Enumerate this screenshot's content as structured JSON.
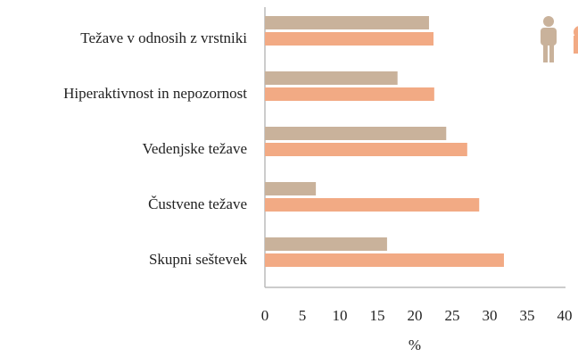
{
  "chart_data": {
    "type": "bar",
    "orientation": "horizontal",
    "categories": [
      "Težave v odnosih z vrstniki",
      "Hiperaktivnost in nepozornost",
      "Vedenjske težave",
      "Čustvene težave",
      "Skupni seštevek"
    ],
    "series": [
      {
        "color": "#c9b29b",
        "values": [
          21.9,
          17.7,
          24.2,
          6.8,
          16.3
        ]
      },
      {
        "color": "#f2aa84",
        "values": [
          22.5,
          22.6,
          27.0,
          28.6,
          31.9
        ]
      }
    ],
    "xlabel": "%",
    "xlim": [
      0,
      40
    ],
    "xticks": [
      0,
      5,
      10,
      15,
      20,
      25,
      30,
      35,
      40
    ],
    "grid": false
  }
}
